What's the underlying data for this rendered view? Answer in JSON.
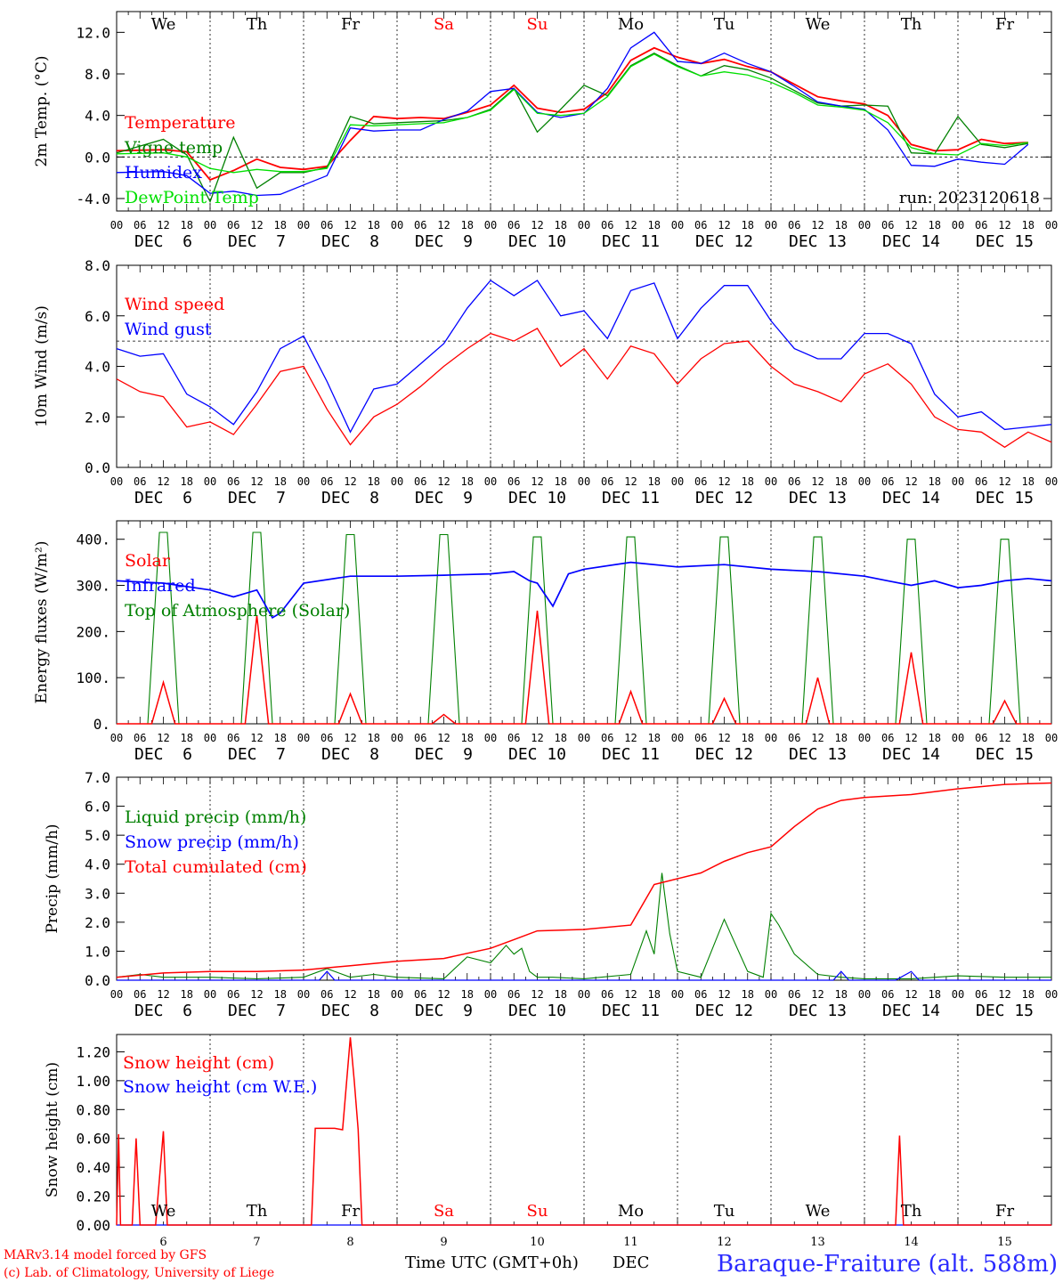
{
  "footer": {
    "model_line": "MARv3.14 model forced by GFS",
    "lab_line": "(c) Lab. of Climatology, University of Liege",
    "xlabel": "Time UTC (GMT+0h)",
    "month_label": "DEC",
    "station": "Baraque-Fraiture (alt. 588m)"
  },
  "days": [
    "We",
    "Th",
    "Fr",
    "Sa",
    "Su",
    "Mo",
    "Tu",
    "We",
    "Th",
    "Fr"
  ],
  "weekend_days": [
    "Sa",
    "Su"
  ],
  "date_labels": [
    "DEC  6",
    "DEC  7",
    "DEC  8",
    "DEC  9",
    "DEC 10",
    "DEC 11",
    "DEC 12",
    "DEC 13",
    "DEC 14",
    "DEC 15"
  ],
  "day_numbers": [
    "6",
    "7",
    "8",
    "9",
    "10",
    "11",
    "12",
    "13",
    "14",
    "15"
  ],
  "hour_ticks": [
    "00",
    "06",
    "12",
    "18"
  ],
  "hour_end_tick": "00",
  "colors": {
    "red": "#ff0000",
    "green": "#008000",
    "blue": "#0000ff",
    "lightgreen": "#00e000",
    "station": "#2a2aff"
  },
  "chart_data": [
    {
      "type": "line",
      "ylabel": "2m Temp. (°C)",
      "ylim": [
        -5.2,
        14
      ],
      "yticks": [
        "-4.0",
        "0.0",
        "4.0",
        "8.0",
        "12.0"
      ],
      "ytick_values": [
        -4,
        0,
        4,
        8,
        12
      ],
      "reference_line": 0,
      "run": "run: 2023120618",
      "x_unit": "hours since DEC 6 00 UTC",
      "series": [
        {
          "name": "Temperature",
          "color": "red",
          "x": [
            0,
            12,
            18,
            24,
            30,
            36,
            42,
            48,
            54,
            60,
            66,
            72,
            78,
            84,
            90,
            96,
            102,
            108,
            114,
            120,
            126,
            132,
            138,
            144,
            150,
            156,
            162,
            168,
            174,
            180,
            186,
            192,
            198,
            204,
            210,
            216,
            222,
            228,
            234
          ],
          "values": [
            0.6,
            0.7,
            0.5,
            -2.2,
            -1.3,
            -0.2,
            -1.0,
            -1.2,
            -0.9,
            1.6,
            3.9,
            3.7,
            3.8,
            3.7,
            4.3,
            5.0,
            6.9,
            4.7,
            4.3,
            4.6,
            6.2,
            9.3,
            10.5,
            9.6,
            9.0,
            9.4,
            8.7,
            8.2,
            7.0,
            5.8,
            5.4,
            5.1,
            4.0,
            1.2,
            0.6,
            0.7,
            1.7,
            1.3,
            1.4
          ]
        },
        {
          "name": "Vigne temp",
          "color": "green",
          "x": [
            0,
            12,
            18,
            24,
            30,
            36,
            42,
            48,
            54,
            60,
            66,
            72,
            78,
            84,
            90,
            96,
            102,
            108,
            114,
            120,
            126,
            132,
            138,
            144,
            150,
            156,
            162,
            168,
            174,
            180,
            186,
            192,
            198,
            204,
            210,
            216,
            222,
            228,
            234
          ],
          "values": [
            0.4,
            1.7,
            0.2,
            -4.3,
            1.9,
            -3.0,
            -1.5,
            -1.5,
            -1.0,
            3.9,
            3.2,
            3.3,
            3.4,
            3.5,
            3.8,
            4.6,
            6.6,
            2.4,
            4.6,
            6.9,
            5.9,
            8.8,
            10.0,
            8.8,
            7.8,
            8.8,
            8.4,
            7.6,
            6.4,
            5.2,
            4.9,
            5.0,
            4.9,
            0.4,
            0.3,
            3.9,
            1.2,
            0.9,
            1.3
          ]
        },
        {
          "name": "Humidex",
          "color": "blue",
          "x": [
            0,
            12,
            18,
            24,
            30,
            36,
            42,
            48,
            54,
            60,
            66,
            72,
            78,
            84,
            90,
            96,
            102,
            108,
            114,
            120,
            126,
            132,
            138,
            144,
            150,
            156,
            162,
            168,
            174,
            180,
            186,
            192,
            198,
            204,
            210,
            216,
            222,
            228,
            234
          ],
          "values": [
            -1.5,
            -1.4,
            -1.8,
            -3.5,
            -3.3,
            -3.7,
            -3.6,
            -2.7,
            -1.8,
            2.8,
            2.5,
            2.6,
            2.6,
            3.6,
            4.4,
            6.3,
            6.6,
            4.3,
            3.8,
            4.2,
            6.6,
            10.5,
            12.0,
            9.2,
            9.0,
            10.0,
            9.0,
            8.2,
            6.8,
            5.3,
            4.9,
            4.6,
            2.6,
            -0.8,
            -0.9,
            -0.2,
            -0.5,
            -0.7,
            1.2
          ]
        },
        {
          "name": "DewPoint Temp",
          "color": "lightgreen",
          "x": [
            0,
            12,
            18,
            24,
            30,
            36,
            42,
            48,
            54,
            60,
            66,
            72,
            78,
            84,
            90,
            96,
            102,
            108,
            114,
            120,
            126,
            132,
            138,
            144,
            150,
            156,
            162,
            168,
            174,
            180,
            186,
            192,
            198,
            204,
            210,
            216,
            222,
            228,
            234
          ],
          "values": [
            0.3,
            0.4,
            0.0,
            -1.1,
            -1.5,
            -1.2,
            -1.4,
            -1.4,
            -1.1,
            3.1,
            3.0,
            3.1,
            3.2,
            3.3,
            3.8,
            4.5,
            6.5,
            4.2,
            4.0,
            4.2,
            5.8,
            8.7,
            9.9,
            8.7,
            7.8,
            8.2,
            7.9,
            7.2,
            6.2,
            5.0,
            4.8,
            4.5,
            3.3,
            0.9,
            0.3,
            0.2,
            1.3,
            1.1,
            1.4
          ]
        }
      ],
      "legend": [
        "Temperature",
        "Vigne temp",
        "Humidex",
        "DewPoint Temp"
      ]
    },
    {
      "type": "line",
      "ylabel": "10m Wind (m/s)",
      "ylim": [
        0,
        8
      ],
      "yticks": [
        "0.0",
        "2.0",
        "4.0",
        "6.0",
        "8.0"
      ],
      "ytick_values": [
        0,
        2,
        4,
        6,
        8
      ],
      "reference_line": 5,
      "x_unit": "hours since DEC 6 00 UTC",
      "series": [
        {
          "name": "Wind speed",
          "color": "red",
          "x": [
            0,
            6,
            12,
            18,
            24,
            30,
            36,
            42,
            48,
            54,
            60,
            66,
            72,
            78,
            84,
            90,
            96,
            102,
            108,
            114,
            120,
            126,
            132,
            138,
            144,
            150,
            156,
            162,
            168,
            174,
            180,
            186,
            192,
            198,
            204,
            210,
            216,
            222,
            228,
            234,
            240
          ],
          "values": [
            3.5,
            3.0,
            2.8,
            1.6,
            1.8,
            1.3,
            2.5,
            3.8,
            4.0,
            2.3,
            0.9,
            2.0,
            2.5,
            3.2,
            4.0,
            4.7,
            5.3,
            5.0,
            5.5,
            4.0,
            4.7,
            3.5,
            4.8,
            4.5,
            3.3,
            4.3,
            4.9,
            5.0,
            4.0,
            3.3,
            3.0,
            2.6,
            3.7,
            4.1,
            3.3,
            2.0,
            1.5,
            1.4,
            0.8,
            1.4,
            1.0
          ]
        },
        {
          "name": "Wind gust",
          "color": "blue",
          "x": [
            0,
            6,
            12,
            18,
            24,
            30,
            36,
            42,
            48,
            54,
            60,
            66,
            72,
            78,
            84,
            90,
            96,
            102,
            108,
            114,
            120,
            126,
            132,
            138,
            144,
            150,
            156,
            162,
            168,
            174,
            180,
            186,
            192,
            198,
            204,
            210,
            216,
            222,
            228,
            234,
            240
          ],
          "values": [
            4.7,
            4.4,
            4.5,
            2.9,
            2.4,
            1.7,
            3.0,
            4.7,
            5.2,
            3.4,
            1.4,
            3.1,
            3.3,
            4.1,
            4.9,
            6.3,
            7.4,
            6.8,
            7.4,
            6.0,
            6.2,
            5.1,
            7.0,
            7.3,
            5.1,
            6.3,
            7.2,
            7.2,
            5.8,
            4.7,
            4.3,
            4.3,
            5.3,
            5.3,
            4.9,
            2.9,
            2.0,
            2.2,
            1.5,
            1.6,
            1.7
          ]
        }
      ],
      "legend": [
        "Wind speed",
        "Wind gust"
      ]
    },
    {
      "type": "line",
      "ylabel": "Energy fluxes (W/m²)",
      "ylim": [
        0,
        440
      ],
      "yticks": [
        "0.",
        "100.",
        "200.",
        "300.",
        "400."
      ],
      "ytick_values": [
        0,
        100,
        200,
        300,
        400
      ],
      "solar_peaks": [
        90,
        235,
        65,
        20,
        245,
        70,
        55,
        100,
        155,
        50
      ],
      "toa_peaks": [
        415,
        415,
        410,
        410,
        405,
        405,
        405,
        405,
        400,
        400
      ],
      "x_unit": "hours since DEC 6 00 UTC",
      "series": [
        {
          "name": "Solar",
          "color": "red"
        },
        {
          "name": "Infrared",
          "color": "blue",
          "x": [
            0,
            12,
            24,
            30,
            36,
            40,
            42,
            48,
            60,
            72,
            84,
            96,
            102,
            106,
            108,
            112,
            114,
            116,
            120,
            132,
            144,
            156,
            168,
            180,
            192,
            198,
            204,
            210,
            216,
            222,
            228,
            234,
            240
          ],
          "values": [
            310,
            305,
            290,
            275,
            290,
            230,
            240,
            305,
            320,
            320,
            322,
            325,
            330,
            310,
            305,
            255,
            290,
            325,
            335,
            350,
            340,
            345,
            335,
            330,
            320,
            310,
            300,
            310,
            295,
            300,
            310,
            315,
            310
          ]
        },
        {
          "name": "Top of Atmosphere (Solar)",
          "color": "green"
        }
      ],
      "legend": [
        "Solar",
        "Infrared",
        "Top of Atmosphere (Solar)"
      ]
    },
    {
      "type": "line",
      "ylabel": "Precip (mm/h)",
      "ylim": [
        0,
        7
      ],
      "yticks": [
        "0.0",
        "1.0",
        "2.0",
        "3.0",
        "4.0",
        "5.0",
        "6.0",
        "7.0"
      ],
      "ytick_values": [
        0,
        1,
        2,
        3,
        4,
        5,
        6,
        7
      ],
      "x_unit": "hours since DEC 6 00 UTC",
      "series": [
        {
          "name": "Liquid precip (mm/h)",
          "color": "green",
          "x": [
            0,
            6,
            12,
            24,
            36,
            48,
            54,
            60,
            66,
            72,
            84,
            90,
            96,
            100,
            102,
            104,
            106,
            108,
            112,
            120,
            132,
            136,
            138,
            140,
            142,
            144,
            150,
            156,
            162,
            166,
            168,
            170,
            174,
            180,
            186,
            192,
            204,
            216,
            228,
            240
          ],
          "values": [
            0.1,
            0.2,
            0.1,
            0.1,
            0.05,
            0.1,
            0.4,
            0.1,
            0.2,
            0.1,
            0.05,
            0.8,
            0.6,
            1.2,
            0.9,
            1.1,
            0.3,
            0.1,
            0.1,
            0.05,
            0.2,
            1.7,
            0.9,
            3.7,
            1.6,
            0.3,
            0.1,
            2.1,
            0.3,
            0.1,
            2.3,
            1.9,
            0.9,
            0.2,
            0.1,
            0.05,
            0.05,
            0.15,
            0.1,
            0.1
          ]
        },
        {
          "name": "Snow precip (mm/h)",
          "color": "blue",
          "x": [
            0,
            12,
            24,
            48,
            52,
            54,
            56,
            72,
            96,
            120,
            144,
            168,
            180,
            184,
            186,
            188,
            200,
            204,
            206,
            240
          ],
          "values": [
            0,
            0,
            0,
            0,
            0,
            0.3,
            0,
            0,
            0,
            0,
            0,
            0,
            0,
            0,
            0.3,
            0,
            0,
            0.3,
            0,
            0
          ]
        },
        {
          "name": "Total cumulated (cm)",
          "color": "red",
          "x": [
            0,
            12,
            24,
            36,
            48,
            60,
            72,
            84,
            96,
            102,
            108,
            120,
            132,
            138,
            144,
            150,
            156,
            162,
            168,
            174,
            180,
            186,
            192,
            204,
            216,
            228,
            240
          ],
          "values": [
            0.1,
            0.25,
            0.3,
            0.3,
            0.35,
            0.5,
            0.65,
            0.75,
            1.1,
            1.4,
            1.7,
            1.75,
            1.9,
            3.3,
            3.5,
            3.7,
            4.1,
            4.4,
            4.6,
            5.3,
            5.9,
            6.2,
            6.3,
            6.4,
            6.6,
            6.75,
            6.8
          ]
        }
      ],
      "legend": [
        "Liquid precip (mm/h)",
        "Snow precip (mm/h)",
        "Total cumulated (cm)"
      ]
    },
    {
      "type": "line",
      "ylabel": "Snow height (cm)",
      "ylim": [
        0,
        1.32
      ],
      "yticks": [
        "0.00",
        "0.20",
        "0.40",
        "0.60",
        "0.80",
        "1.00",
        "1.20"
      ],
      "ytick_values": [
        0,
        0.2,
        0.4,
        0.6,
        0.8,
        1.0,
        1.2
      ],
      "x_unit": "hours since DEC 6 00 UTC",
      "series": [
        {
          "name": "Snow height (cm)",
          "color": "red",
          "x": [
            0,
            0.5,
            1,
            4,
            5,
            6,
            10,
            12,
            13,
            14,
            50,
            51,
            56,
            58,
            60,
            61,
            62,
            63,
            196,
            200,
            201,
            202,
            240
          ],
          "values": [
            0,
            0.63,
            0,
            0,
            0.6,
            0,
            0,
            0.65,
            0,
            0,
            0,
            0.67,
            0.67,
            0.66,
            1.3,
            1.0,
            0.66,
            0,
            0,
            0,
            0.62,
            0,
            0
          ]
        },
        {
          "name": "Snow height (cm W.E.)",
          "color": "blue",
          "x": [
            0,
            240
          ],
          "values": [
            0,
            0
          ]
        }
      ],
      "legend": [
        "Snow height (cm)",
        "Snow height (cm W.E.)"
      ]
    }
  ]
}
